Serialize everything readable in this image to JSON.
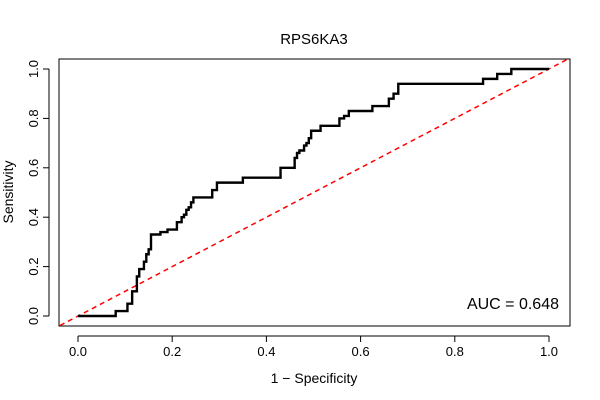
{
  "chart_data": {
    "type": "line",
    "title": "RPS6KA3",
    "xlabel": "1 − Specificity",
    "ylabel": "Sensitivity",
    "xlim": [
      0,
      1
    ],
    "ylim": [
      0,
      1
    ],
    "x_ticks": [
      "0.0",
      "0.2",
      "0.4",
      "0.6",
      "0.8",
      "1.0"
    ],
    "y_ticks": [
      "0.0",
      "0.2",
      "0.4",
      "0.6",
      "0.8",
      "1.0"
    ],
    "grid": false,
    "legend": "none",
    "annotation": "AUC = 0.648",
    "series": [
      {
        "color": "#000000",
        "style": "solid",
        "points": [
          [
            0.0,
            0.0
          ],
          [
            0.08,
            0.0
          ],
          [
            0.08,
            0.02
          ],
          [
            0.105,
            0.02
          ],
          [
            0.105,
            0.05
          ],
          [
            0.115,
            0.05
          ],
          [
            0.115,
            0.1
          ],
          [
            0.125,
            0.1
          ],
          [
            0.125,
            0.16
          ],
          [
            0.13,
            0.16
          ],
          [
            0.13,
            0.19
          ],
          [
            0.14,
            0.19
          ],
          [
            0.14,
            0.22
          ],
          [
            0.145,
            0.22
          ],
          [
            0.145,
            0.25
          ],
          [
            0.15,
            0.25
          ],
          [
            0.15,
            0.27
          ],
          [
            0.155,
            0.27
          ],
          [
            0.155,
            0.33
          ],
          [
            0.175,
            0.33
          ],
          [
            0.175,
            0.34
          ],
          [
            0.19,
            0.34
          ],
          [
            0.19,
            0.35
          ],
          [
            0.21,
            0.35
          ],
          [
            0.21,
            0.38
          ],
          [
            0.22,
            0.38
          ],
          [
            0.22,
            0.4
          ],
          [
            0.225,
            0.4
          ],
          [
            0.225,
            0.41
          ],
          [
            0.23,
            0.41
          ],
          [
            0.23,
            0.43
          ],
          [
            0.235,
            0.43
          ],
          [
            0.235,
            0.44
          ],
          [
            0.24,
            0.44
          ],
          [
            0.24,
            0.46
          ],
          [
            0.245,
            0.46
          ],
          [
            0.245,
            0.48
          ],
          [
            0.285,
            0.48
          ],
          [
            0.285,
            0.51
          ],
          [
            0.295,
            0.51
          ],
          [
            0.295,
            0.54
          ],
          [
            0.35,
            0.54
          ],
          [
            0.35,
            0.56
          ],
          [
            0.43,
            0.56
          ],
          [
            0.43,
            0.6
          ],
          [
            0.46,
            0.6
          ],
          [
            0.46,
            0.64
          ],
          [
            0.465,
            0.64
          ],
          [
            0.465,
            0.66
          ],
          [
            0.47,
            0.66
          ],
          [
            0.47,
            0.67
          ],
          [
            0.48,
            0.67
          ],
          [
            0.48,
            0.69
          ],
          [
            0.485,
            0.69
          ],
          [
            0.485,
            0.7
          ],
          [
            0.49,
            0.7
          ],
          [
            0.49,
            0.72
          ],
          [
            0.495,
            0.72
          ],
          [
            0.495,
            0.75
          ],
          [
            0.515,
            0.75
          ],
          [
            0.515,
            0.77
          ],
          [
            0.555,
            0.77
          ],
          [
            0.555,
            0.8
          ],
          [
            0.565,
            0.8
          ],
          [
            0.565,
            0.81
          ],
          [
            0.575,
            0.81
          ],
          [
            0.575,
            0.83
          ],
          [
            0.625,
            0.83
          ],
          [
            0.625,
            0.85
          ],
          [
            0.66,
            0.85
          ],
          [
            0.66,
            0.88
          ],
          [
            0.67,
            0.88
          ],
          [
            0.67,
            0.9
          ],
          [
            0.68,
            0.9
          ],
          [
            0.68,
            0.94
          ],
          [
            0.86,
            0.94
          ],
          [
            0.86,
            0.96
          ],
          [
            0.89,
            0.96
          ],
          [
            0.89,
            0.98
          ],
          [
            0.92,
            0.98
          ],
          [
            0.92,
            1.0
          ],
          [
            1.0,
            1.0
          ]
        ]
      },
      {
        "color": "#ff0000",
        "style": "dashed",
        "points": [
          [
            0.0,
            0.0
          ],
          [
            1.0,
            1.0
          ]
        ]
      }
    ]
  }
}
